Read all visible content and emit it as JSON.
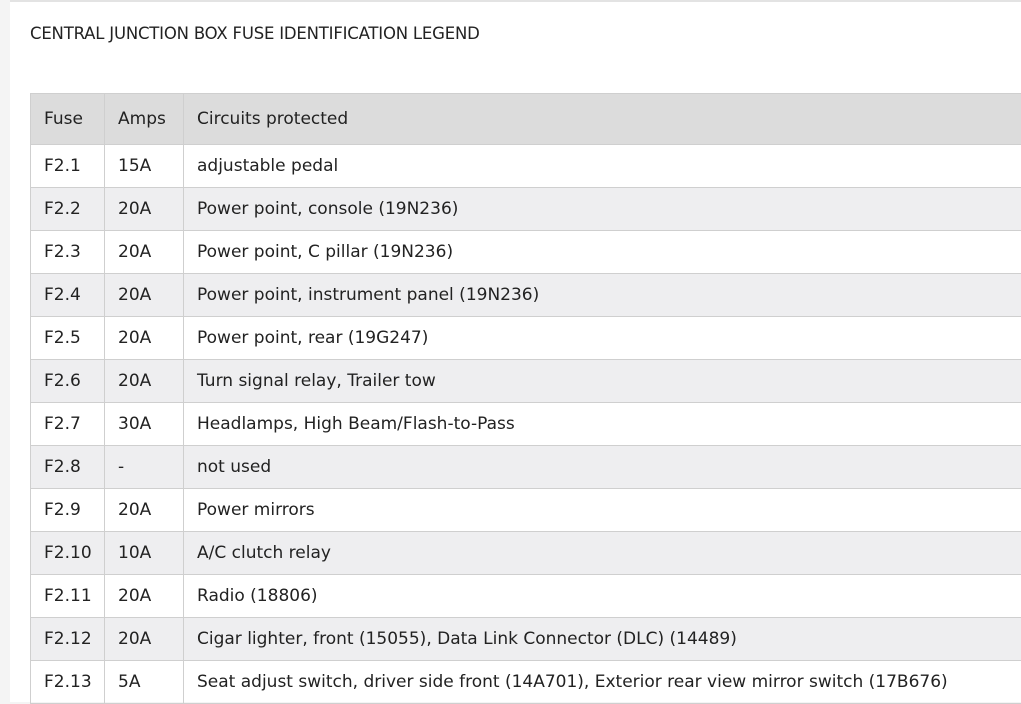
{
  "title": "CENTRAL JUNCTION BOX FUSE IDENTIFICATION LEGEND",
  "table": {
    "headers": [
      "Fuse",
      "Amps",
      "Circuits protected"
    ],
    "rows": [
      [
        "F2.1",
        "15A",
        "adjustable pedal"
      ],
      [
        "F2.2",
        "20A",
        "Power point, console (19N236)"
      ],
      [
        "F2.3",
        "20A",
        "Power point, C pillar (19N236)"
      ],
      [
        "F2.4",
        "20A",
        "Power point, instrument panel (19N236)"
      ],
      [
        "F2.5",
        "20A",
        "Power point, rear (19G247)"
      ],
      [
        "F2.6",
        "20A",
        "Turn signal relay, Trailer tow"
      ],
      [
        "F2.7",
        "30A",
        "Headlamps, High Beam/Flash-to-Pass"
      ],
      [
        "F2.8",
        "-",
        "not used"
      ],
      [
        "F2.9",
        "20A",
        "Power mirrors"
      ],
      [
        "F2.10",
        "10A",
        "A/C clutch relay"
      ],
      [
        "F2.11",
        "20A",
        "Radio (18806)"
      ],
      [
        "F2.12",
        "20A",
        "Cigar lighter, front (15055), Data Link Connector (DLC) (14489)"
      ],
      [
        "F2.13",
        "5A",
        "Seat adjust switch, driver side front (14A701), Exterior rear view mirror switch (17B676)"
      ]
    ]
  }
}
